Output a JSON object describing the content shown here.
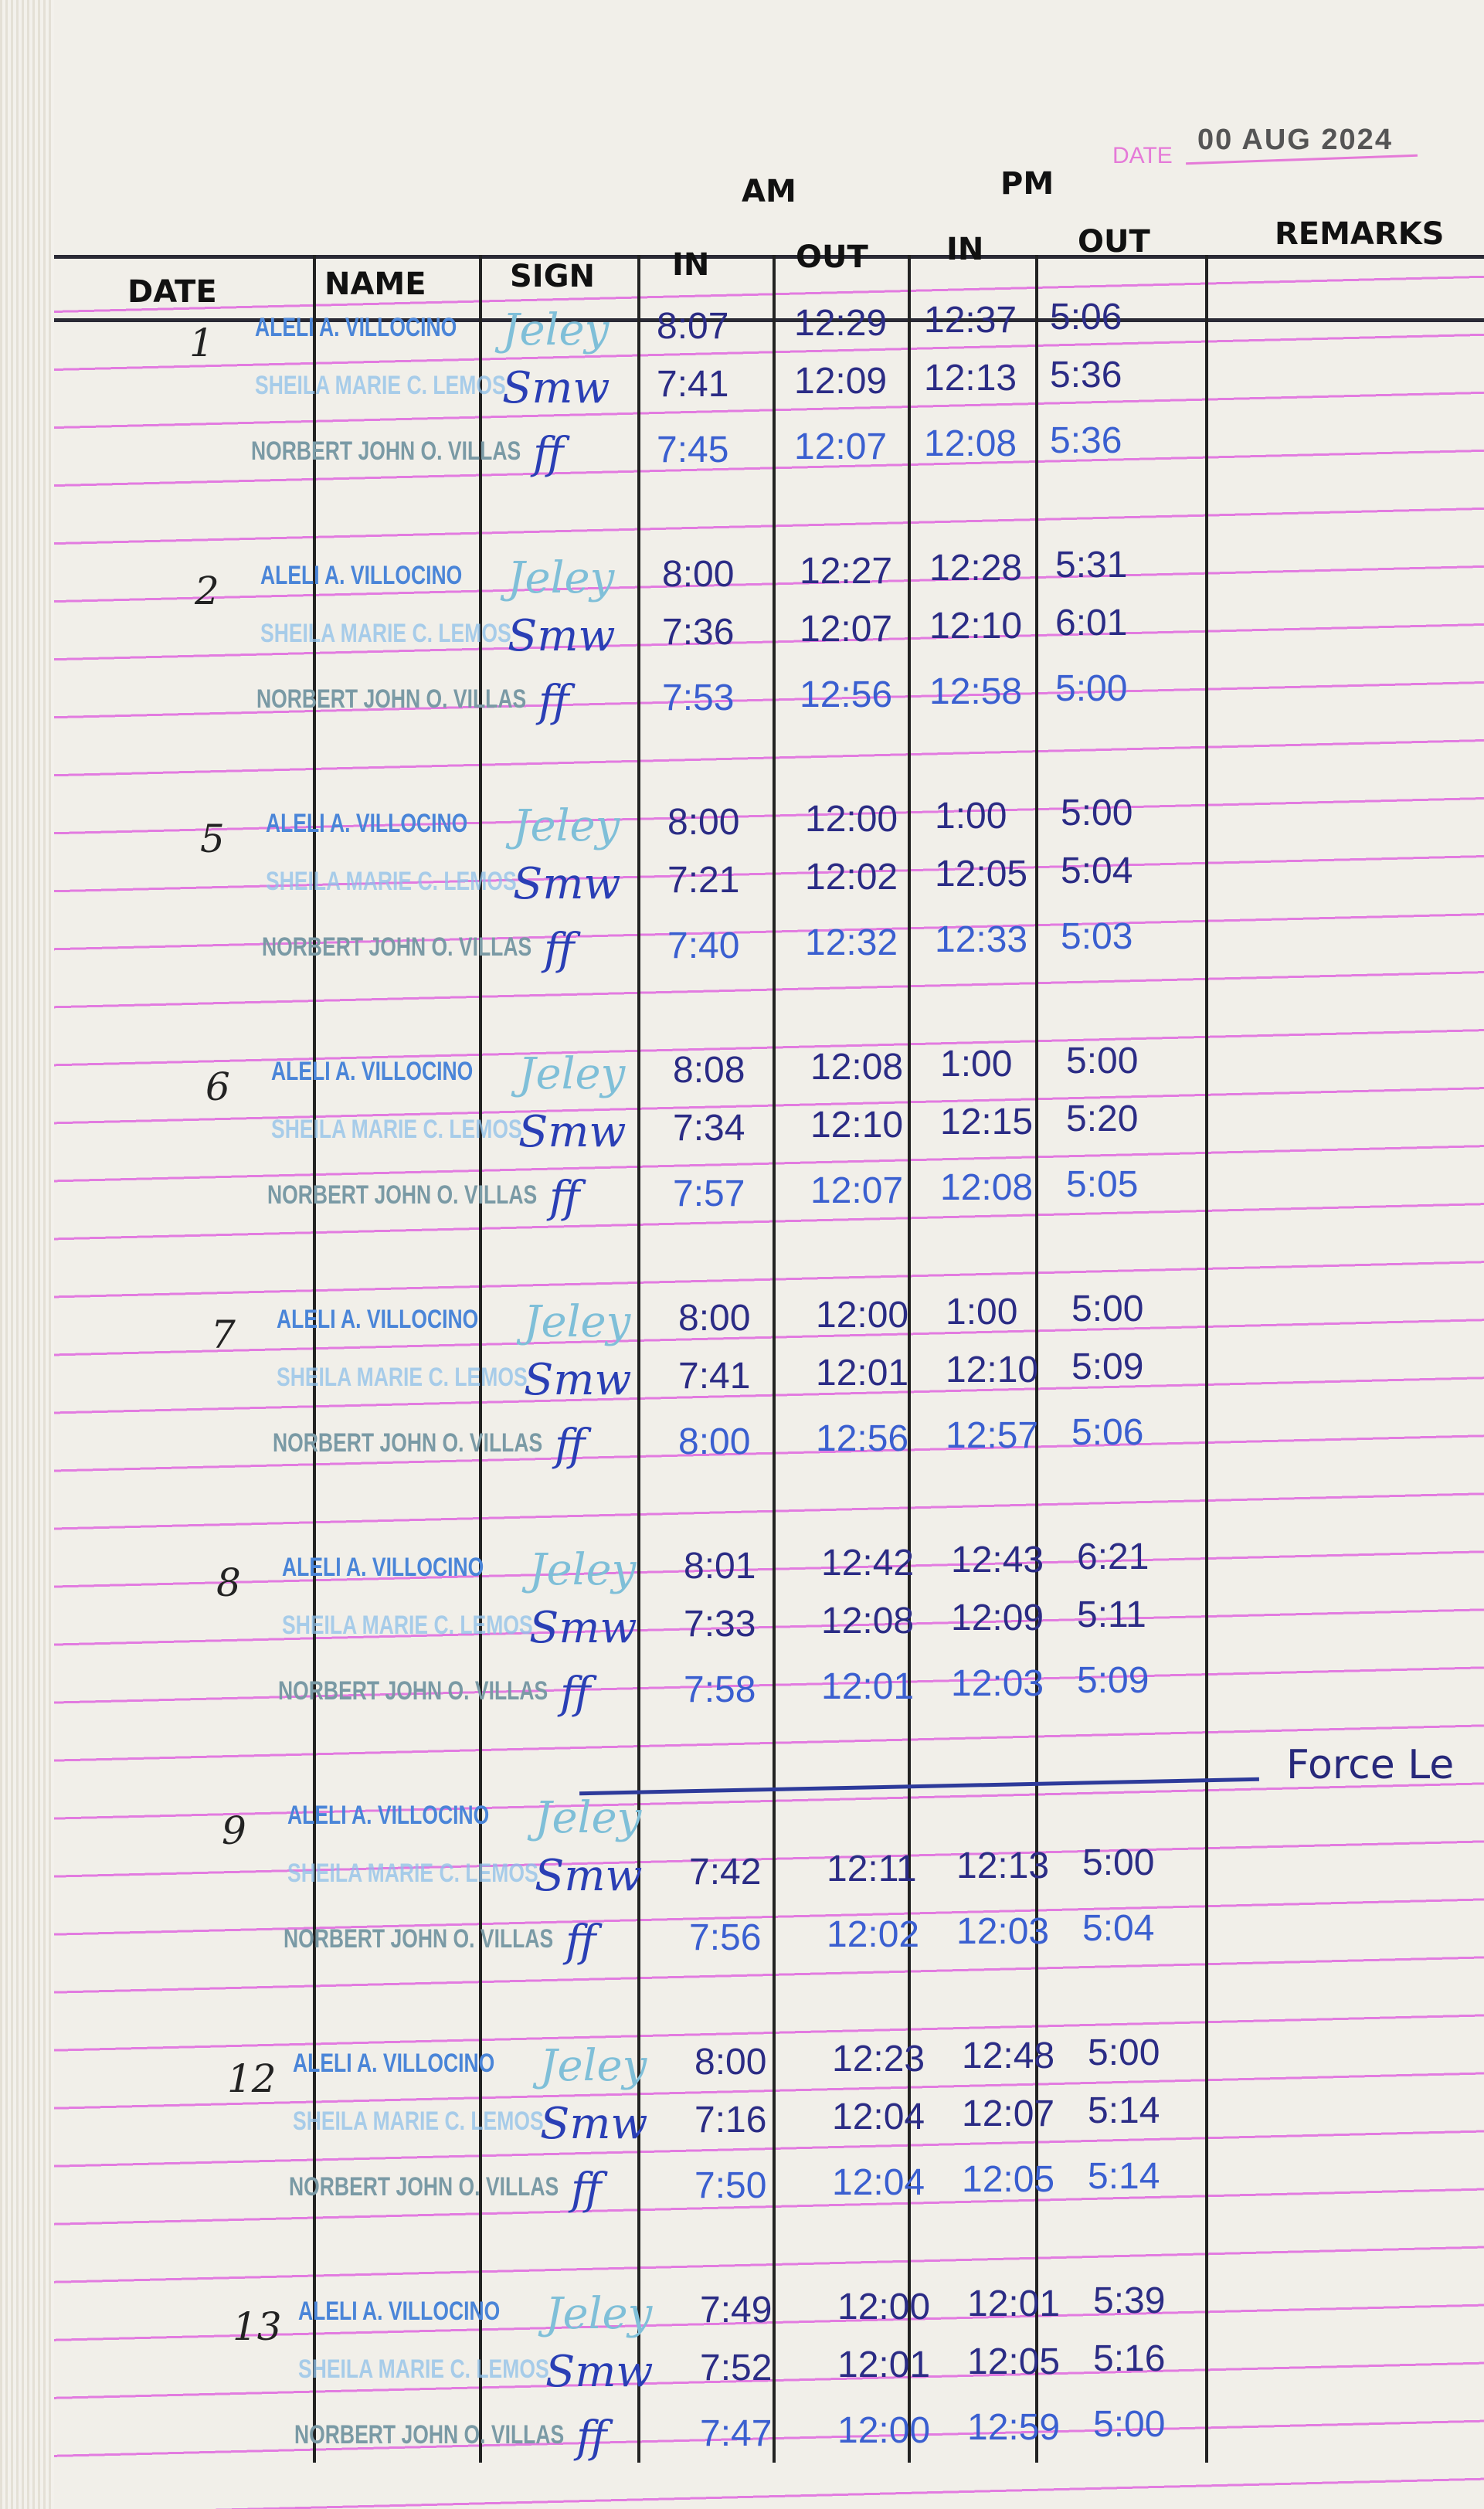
{
  "stamp": {
    "label": "DATE",
    "value": "00 AUG 2024"
  },
  "period_headers": {
    "am": "AM",
    "pm": "PM"
  },
  "columns": {
    "date": "DATE",
    "name": "NAME",
    "sign": "SIGN",
    "am_in": "IN",
    "am_out": "OUT",
    "pm_in": "IN",
    "pm_out": "OUT",
    "remarks": "REMARKS"
  },
  "names": [
    "ALELI A. VILLOCINO",
    "SHEILA MARIE C. LEMOS",
    "NORBERT JOHN O. VILLAS"
  ],
  "signatures": [
    "Jeley",
    "Smw",
    "ff"
  ],
  "entries": [
    {
      "day": "1",
      "rows": [
        [
          "8:07",
          "12:29",
          "12:37",
          "5:06"
        ],
        [
          "7:41",
          "12:09",
          "12:13",
          "5:36"
        ],
        [
          "7:45",
          "12:07",
          "12:08",
          "5:36"
        ]
      ]
    },
    {
      "day": "2",
      "rows": [
        [
          "8:00",
          "12:27",
          "12:28",
          "5:31"
        ],
        [
          "7:36",
          "12:07",
          "12:10",
          "6:01"
        ],
        [
          "7:53",
          "12:56",
          "12:58",
          "5:00"
        ]
      ]
    },
    {
      "day": "5",
      "rows": [
        [
          "8:00",
          "12:00",
          "1:00",
          "5:00"
        ],
        [
          "7:21",
          "12:02",
          "12:05",
          "5:04"
        ],
        [
          "7:40",
          "12:32",
          "12:33",
          "5:03"
        ]
      ]
    },
    {
      "day": "6",
      "rows": [
        [
          "8:08",
          "12:08",
          "1:00",
          "5:00"
        ],
        [
          "7:34",
          "12:10",
          "12:15",
          "5:20"
        ],
        [
          "7:57",
          "12:07",
          "12:08",
          "5:05"
        ]
      ]
    },
    {
      "day": "7",
      "rows": [
        [
          "8:00",
          "12:00",
          "1:00",
          "5:00"
        ],
        [
          "7:41",
          "12:01",
          "12:10",
          "5:09"
        ],
        [
          "8:00",
          "12:56",
          "12:57",
          "5:06"
        ]
      ]
    },
    {
      "day": "8",
      "rows": [
        [
          "8:01",
          "12:42",
          "12:43",
          "6:21"
        ],
        [
          "7:33",
          "12:08",
          "12:09",
          "5:11"
        ],
        [
          "7:58",
          "12:01",
          "12:03",
          "5:09"
        ]
      ]
    },
    {
      "day": "9",
      "rows": [
        [
          "",
          "",
          "",
          ""
        ],
        [
          "7:42",
          "12:11",
          "12:13",
          "5:00"
        ],
        [
          "7:56",
          "12:02",
          "12:03",
          "5:04"
        ]
      ],
      "remark": "Force Le"
    },
    {
      "day": "12",
      "rows": [
        [
          "8:00",
          "12:23",
          "12:48",
          "5:00"
        ],
        [
          "7:16",
          "12:04",
          "12:07",
          "5:14"
        ],
        [
          "7:50",
          "12:04",
          "12:05",
          "5:14"
        ]
      ]
    },
    {
      "day": "13",
      "rows": [
        [
          "7:49",
          "12:00",
          "12:01",
          "5:39"
        ],
        [
          "7:52",
          "12:01",
          "12:05",
          "5:16"
        ],
        [
          "7:47",
          "12:00",
          "12:59",
          "5:00"
        ]
      ]
    }
  ]
}
